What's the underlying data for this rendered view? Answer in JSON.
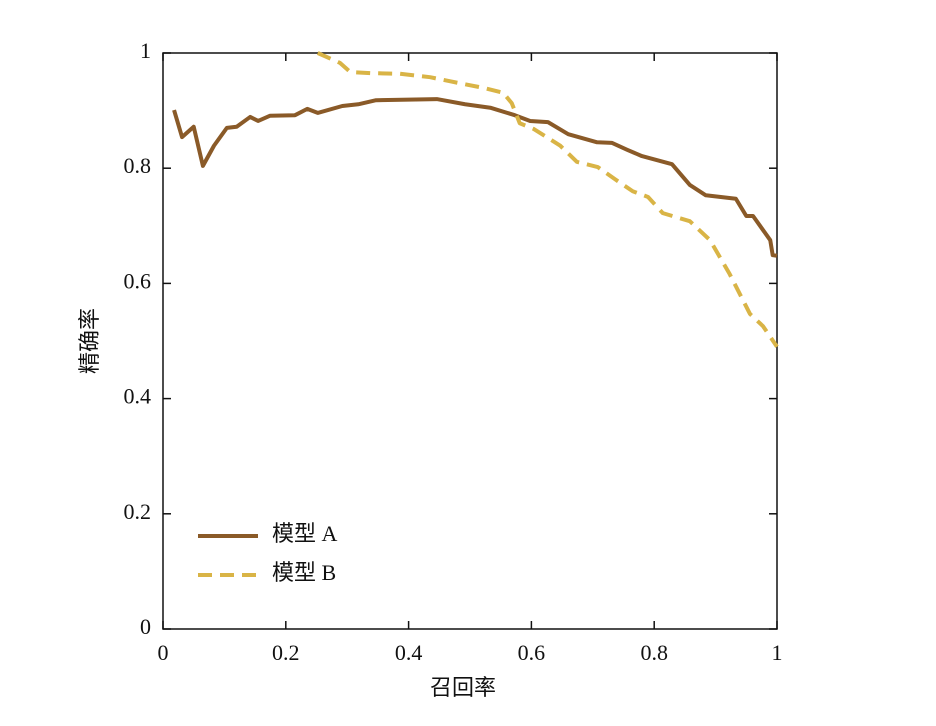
{
  "chart_data": {
    "type": "line",
    "xlabel": "召回率",
    "ylabel": "精确率",
    "xlim": [
      0,
      1
    ],
    "ylim": [
      0,
      1
    ],
    "xticks": [
      0,
      0.2,
      0.4,
      0.6,
      0.8,
      1
    ],
    "yticks": [
      0,
      0.2,
      0.4,
      0.6,
      0.8,
      1
    ],
    "legend": "lower left",
    "series": [
      {
        "name": "模型 A",
        "color": "#8a5a28",
        "dash": "solid",
        "x": [
          0.018,
          0.031,
          0.05,
          0.065,
          0.083,
          0.104,
          0.12,
          0.142,
          0.155,
          0.174,
          0.215,
          0.235,
          0.252,
          0.292,
          0.318,
          0.347,
          0.446,
          0.492,
          0.533,
          0.573,
          0.598,
          0.627,
          0.66,
          0.707,
          0.731,
          0.756,
          0.78,
          0.829,
          0.858,
          0.884,
          0.933,
          0.95,
          0.961,
          0.989,
          0.993,
          1
        ],
        "values": [
          0.901,
          0.854,
          0.872,
          0.804,
          0.839,
          0.87,
          0.872,
          0.889,
          0.882,
          0.891,
          0.892,
          0.903,
          0.896,
          0.908,
          0.911,
          0.918,
          0.92,
          0.911,
          0.905,
          0.892,
          0.882,
          0.88,
          0.859,
          0.845,
          0.844,
          0.832,
          0.821,
          0.807,
          0.771,
          0.753,
          0.747,
          0.717,
          0.717,
          0.675,
          0.649,
          0.648
        ]
      },
      {
        "name": "模型 B",
        "color": "#d9b446",
        "dash": "dashed",
        "x": [
          0.252,
          0.288,
          0.305,
          0.34,
          0.386,
          0.435,
          0.467,
          0.524,
          0.554,
          0.568,
          0.581,
          0.604,
          0.647,
          0.674,
          0.708,
          0.736,
          0.765,
          0.79,
          0.814,
          0.858,
          0.891,
          0.923,
          0.956,
          0.977,
          1
        ],
        "values": [
          1,
          0.983,
          0.967,
          0.965,
          0.964,
          0.958,
          0.951,
          0.939,
          0.931,
          0.913,
          0.878,
          0.868,
          0.839,
          0.811,
          0.802,
          0.781,
          0.76,
          0.75,
          0.722,
          0.708,
          0.675,
          0.616,
          0.547,
          0.526,
          0.49
        ]
      }
    ]
  }
}
